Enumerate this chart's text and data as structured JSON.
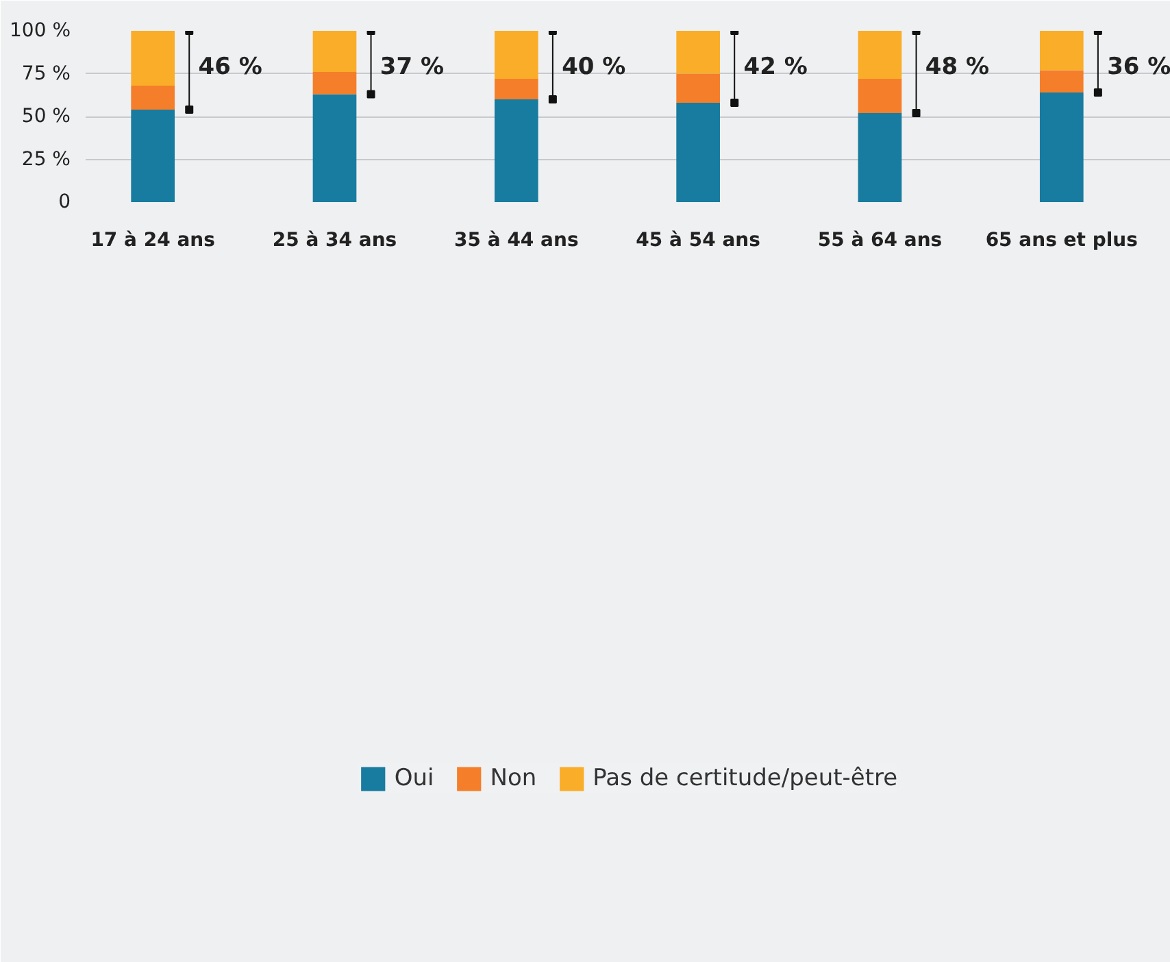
{
  "chart_data": {
    "type": "bar",
    "stacked": true,
    "categories": [
      "17 à 24 ans",
      "25 à 34 ans",
      "35 à 44 ans",
      "45 à 54 ans",
      "55 à 64 ans",
      "65 ans et plus"
    ],
    "series": [
      {
        "name": "Oui",
        "color": "#187ba0",
        "values": [
          54,
          63,
          60,
          58,
          52,
          64
        ]
      },
      {
        "name": "Non",
        "color": "#f47e2a",
        "values": [
          14,
          13,
          12,
          17,
          20,
          13
        ]
      },
      {
        "name": "Pas de certitude/peut-être",
        "color": "#f9ad29",
        "values": [
          32,
          24,
          28,
          25,
          28,
          23
        ]
      }
    ],
    "ylim": [
      0,
      100
    ],
    "yticks": [
      {
        "value": 0,
        "label": "0"
      },
      {
        "value": 25,
        "label": "25 %"
      },
      {
        "value": 50,
        "label": "50 %"
      },
      {
        "value": 75,
        "label": "75 %"
      },
      {
        "value": 100,
        "label": "100 %"
      }
    ],
    "grid": "y",
    "legend": "bottom",
    "annotations": [
      "46 %",
      "37 %",
      "40 %",
      "42 %",
      "48 %",
      "36 %"
    ]
  }
}
